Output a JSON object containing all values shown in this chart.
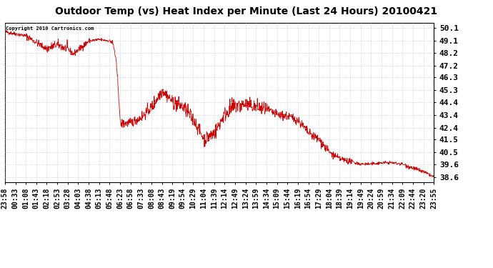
{
  "title": "Outdoor Temp (vs) Heat Index per Minute (Last 24 Hours) 20100421",
  "copyright_text": "Copyright 2010 Cartronics.com",
  "line_color": "#cc0000",
  "background_color": "#ffffff",
  "grid_color": "#bbbbbb",
  "y_ticks": [
    38.6,
    39.6,
    40.5,
    41.5,
    42.4,
    43.4,
    44.4,
    45.3,
    46.3,
    47.2,
    48.2,
    49.1,
    50.1
  ],
  "x_tick_labels": [
    "23:58",
    "00:33",
    "01:08",
    "01:43",
    "02:18",
    "02:53",
    "03:28",
    "04:03",
    "04:38",
    "05:13",
    "05:48",
    "06:23",
    "06:58",
    "07:33",
    "08:08",
    "08:43",
    "09:19",
    "09:54",
    "10:29",
    "11:04",
    "11:39",
    "12:14",
    "12:49",
    "13:24",
    "13:59",
    "14:34",
    "15:09",
    "15:44",
    "16:19",
    "16:54",
    "17:29",
    "18:04",
    "18:39",
    "19:14",
    "19:49",
    "20:24",
    "20:59",
    "21:34",
    "22:09",
    "22:44",
    "23:20",
    "23:55"
  ],
  "ylim_min": 38.2,
  "ylim_max": 50.5,
  "title_fontsize": 10,
  "axis_fontsize": 7,
  "copyright_fontsize": 5,
  "ytick_fontsize": 8
}
